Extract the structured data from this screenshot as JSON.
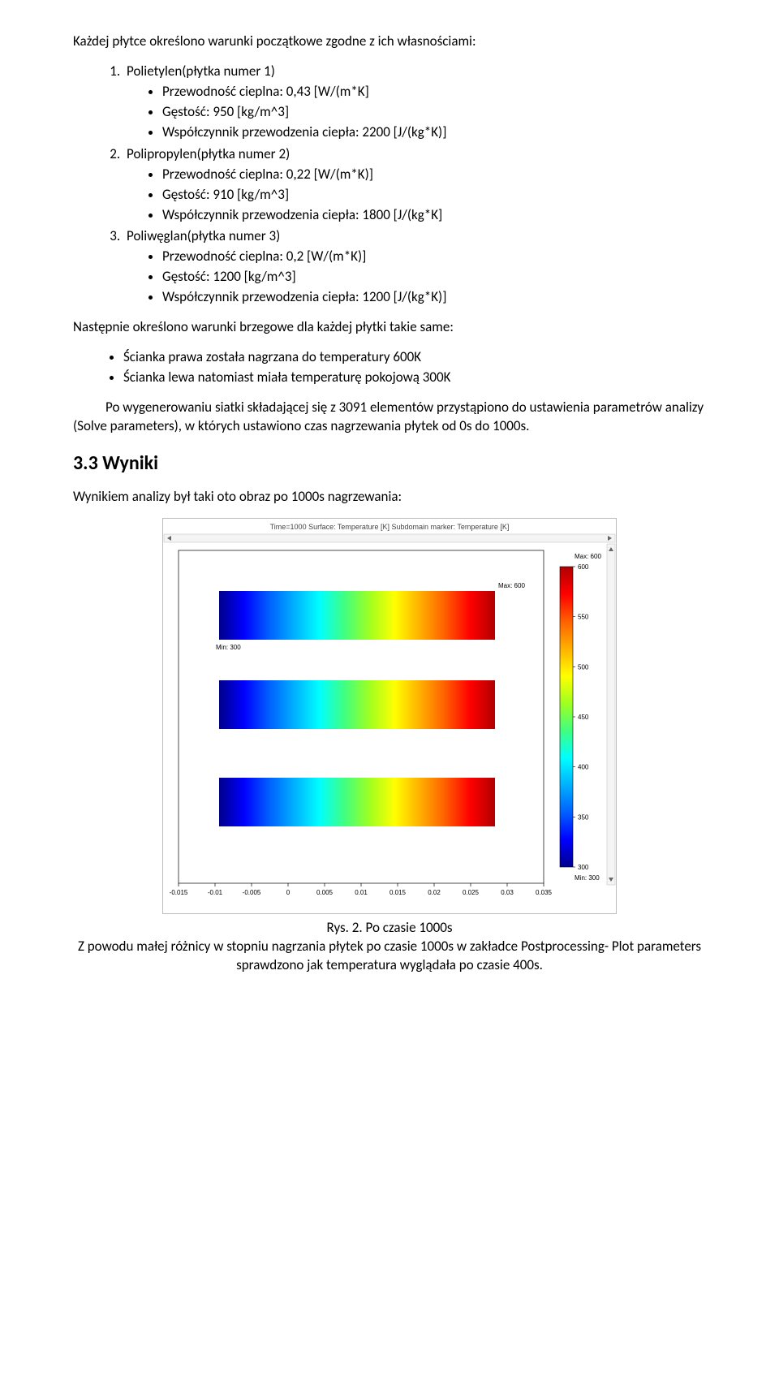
{
  "intro": "Każdej płytce określono warunki początkowe zgodne z ich własnościami:",
  "materials": [
    {
      "title": "Polietylen(płytka numer 1)",
      "props": [
        "Przewodność cieplna: 0,43 [W/(m*K]",
        "Gęstość: 950 [kg/m^3]",
        "Współczynnik przewodzenia ciepła: 2200 [J/(kg*K)]"
      ]
    },
    {
      "title": "Polipropylen(płytka numer 2)",
      "props": [
        "Przewodność cieplna: 0,22 [W/(m*K)]",
        "Gęstość: 910 [kg/m^3]",
        "Współczynnik przewodzenia ciepła: 1800 [J/(kg*K]"
      ]
    },
    {
      "title": "Poliwęglan(płytka numer 3)",
      "props": [
        "Przewodność cieplna: 0,2 [W/(m*K)]",
        "Gęstość: 1200 [kg/m^3]",
        "Współczynnik przewodzenia ciepła: 1200 [J/(kg*K)]"
      ]
    }
  ],
  "bc_intro": "Następnie określono warunki brzegowe dla każdej płytki takie same:",
  "bc_items": [
    "Ścianka prawa została nagrzana do temperatury 600K",
    "Ścianka lewa natomiast miała temperaturę pokojową 300K"
  ],
  "mesh_para": "Po wygenerowaniu siatki składającej się z 3091 elementów przystąpiono do ustawienia parametrów analizy (Solve parameters), w których ustawiono czas nagrzewania płytek od 0s do 1000s.",
  "section_heading": "3.3 Wyniki",
  "result_intro": "Wynikiem analizy był taki oto obraz po 1000s nagrzewania:",
  "figure": {
    "caption": "Rys. 2. Po czasie 1000s",
    "plot_title": "Time=1000  Surface: Temperature [K]  Subdomain marker: Temperature [K]",
    "annot_max": "Max: 600",
    "annot_min": "Min: 300",
    "max_label": "Max: 600",
    "min_label": "Min: 300",
    "colorbar_ticks": [
      "600",
      "550",
      "500",
      "450",
      "400",
      "350",
      "300"
    ],
    "x_ticks": [
      "-0.015",
      "-0.01",
      "-0.005",
      "0",
      "0.005",
      "0.01",
      "0.015",
      "0.02",
      "0.025",
      "0.03",
      "0.035"
    ],
    "gradient_colors": [
      "#00008b",
      "#0000ff",
      "#0060ff",
      "#00b0ff",
      "#00ffff",
      "#40ff80",
      "#a0ff20",
      "#ffff00",
      "#ffb000",
      "#ff6000",
      "#ff0000",
      "#b00000"
    ],
    "background": "#ffffff",
    "border_color": "#bdbdbd",
    "tick_color": "#000000",
    "tick_fontsize": 8,
    "title_fontsize": 9,
    "colorbar_fontsize": 8
  },
  "closing": "Z powodu małej różnicy w stopniu nagrzania płytek po czasie 1000s w zakładce Postprocessing- Plot parameters sprawdzono jak temperatura wyglądała po czasie 400s."
}
